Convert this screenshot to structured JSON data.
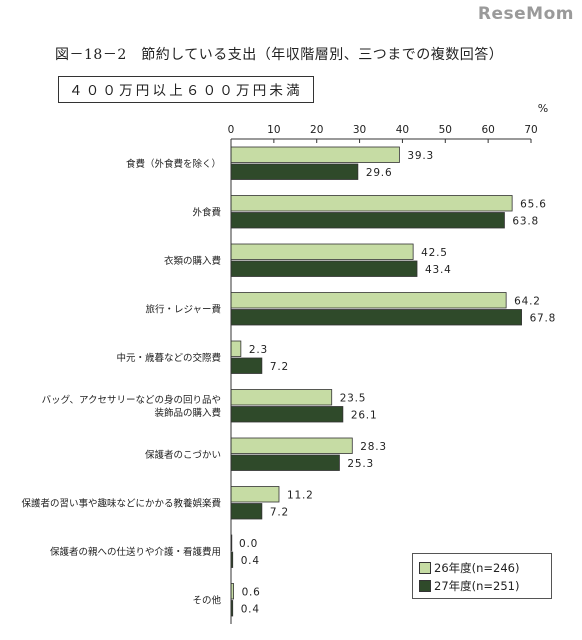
{
  "watermark": "ReseMom",
  "title": "図－18－2　節約している支出（年収階層別、三つまでの複数回答）",
  "subtitle": "４００万円以上６００万円未満",
  "colors": {
    "series1": "#c6dca4",
    "series2": "#2f4a2a",
    "axis": "#333333"
  },
  "chart_data": {
    "type": "bar",
    "orientation": "horizontal",
    "title": "図－18－2　節約している支出（年収階層別、三つまでの複数回答）",
    "subtitle": "４００万円以上６００万円未満",
    "unit": "%",
    "xlim": [
      0,
      70
    ],
    "ticks": [
      0,
      10,
      20,
      30,
      40,
      50,
      60,
      70
    ],
    "grid": false,
    "legend_position": "bottom-right",
    "categories": [
      [
        "食費（外食費を除く）"
      ],
      [
        "外食費"
      ],
      [
        "衣類の購入費"
      ],
      [
        "旅行・レジャー費"
      ],
      [
        "中元・歳暮などの交際費"
      ],
      [
        "バッグ、アクセサリーなどの身の回り品や",
        "装飾品の購入費"
      ],
      [
        "保護者のこづかい"
      ],
      [
        "保護者の習い事や趣味などにかかる教養娯楽費"
      ],
      [
        "保護者の親への仕送りや介護・看護費用"
      ],
      [
        "その他"
      ]
    ],
    "series": [
      {
        "name": "26年度(n=246)",
        "values": [
          39.3,
          65.6,
          42.5,
          64.2,
          2.3,
          23.5,
          28.3,
          11.2,
          0.0,
          0.6
        ]
      },
      {
        "name": "27年度(n=251)",
        "values": [
          29.6,
          63.8,
          43.4,
          67.8,
          7.2,
          26.1,
          25.3,
          7.2,
          0.4,
          0.4
        ]
      }
    ]
  }
}
